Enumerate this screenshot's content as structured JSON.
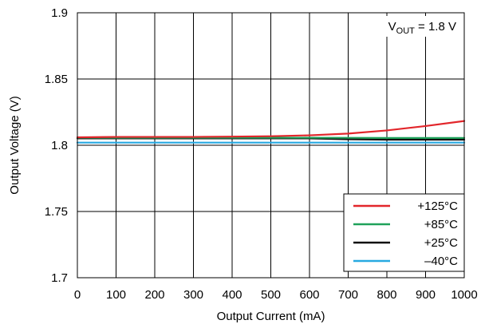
{
  "chart_data": {
    "type": "line",
    "title": "",
    "xlabel": "Output Current (mA)",
    "ylabel": "Output Voltage (V)",
    "xlim": [
      0,
      1000
    ],
    "ylim": [
      1.7,
      1.9
    ],
    "x_ticks": [
      0,
      100,
      200,
      300,
      400,
      500,
      600,
      700,
      800,
      900,
      1000
    ],
    "y_ticks": [
      1.7,
      1.75,
      1.8,
      1.85,
      1.9
    ],
    "x_tick_labels": [
      "0",
      "100",
      "200",
      "300",
      "400",
      "500",
      "600",
      "700",
      "800",
      "900",
      "1000"
    ],
    "y_tick_labels": [
      "1.7",
      "1.75",
      "1.8",
      "1.85",
      "1.9"
    ],
    "grid": true,
    "legend_position": "bottom-right",
    "annotation": {
      "prefix": "V",
      "subscript": "OUT",
      "suffix": " = 1.8 V"
    },
    "x": [
      0,
      100,
      200,
      300,
      400,
      500,
      600,
      700,
      800,
      900,
      1000
    ],
    "series": [
      {
        "name": "+125°C",
        "color": "#e2262b",
        "values": [
          1.806,
          1.8063,
          1.8063,
          1.8063,
          1.8065,
          1.8068,
          1.8075,
          1.8088,
          1.8112,
          1.8145,
          1.8183
        ]
      },
      {
        "name": "+85°C",
        "color": "#1fa15a",
        "values": [
          1.8058,
          1.8057,
          1.8057,
          1.8057,
          1.8057,
          1.8057,
          1.8057,
          1.8056,
          1.8055,
          1.8055,
          1.8055
        ]
      },
      {
        "name": "+25°C",
        "color": "#111111",
        "values": [
          1.8052,
          1.8052,
          1.8052,
          1.8052,
          1.8052,
          1.8052,
          1.8052,
          1.8045,
          1.8042,
          1.8042,
          1.8042
        ]
      },
      {
        "name": "–40°C",
        "color": "#27a9e1",
        "values": [
          1.802,
          1.802,
          1.802,
          1.802,
          1.802,
          1.802,
          1.802,
          1.802,
          1.802,
          1.802,
          1.802
        ]
      }
    ]
  }
}
